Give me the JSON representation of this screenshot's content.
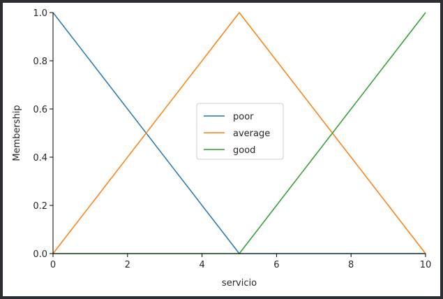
{
  "chart_data": {
    "type": "line",
    "title": "",
    "xlabel": "servicio",
    "ylabel": "Membership",
    "xlim": [
      0,
      10
    ],
    "ylim": [
      0,
      1
    ],
    "xticks": [
      0,
      2,
      4,
      6,
      8,
      10
    ],
    "xtick_labels": [
      "0",
      "2",
      "4",
      "6",
      "8",
      "10"
    ],
    "yticks": [
      0,
      0.2,
      0.4,
      0.6,
      0.8,
      1.0
    ],
    "ytick_labels": [
      "0.0",
      "0.2",
      "0.4",
      "0.6",
      "0.8",
      "1.0"
    ],
    "grid": false,
    "legend_position": "center",
    "series": [
      {
        "name": "poor",
        "color": "#1f77b4",
        "x": [
          0,
          5,
          10
        ],
        "y": [
          1,
          0,
          0
        ]
      },
      {
        "name": "average",
        "color": "#ff7f0e",
        "x": [
          0,
          5,
          10
        ],
        "y": [
          0,
          1,
          0
        ]
      },
      {
        "name": "good",
        "color": "#2ca02c",
        "x": [
          0,
          5,
          10
        ],
        "y": [
          0,
          0,
          1
        ]
      }
    ]
  }
}
